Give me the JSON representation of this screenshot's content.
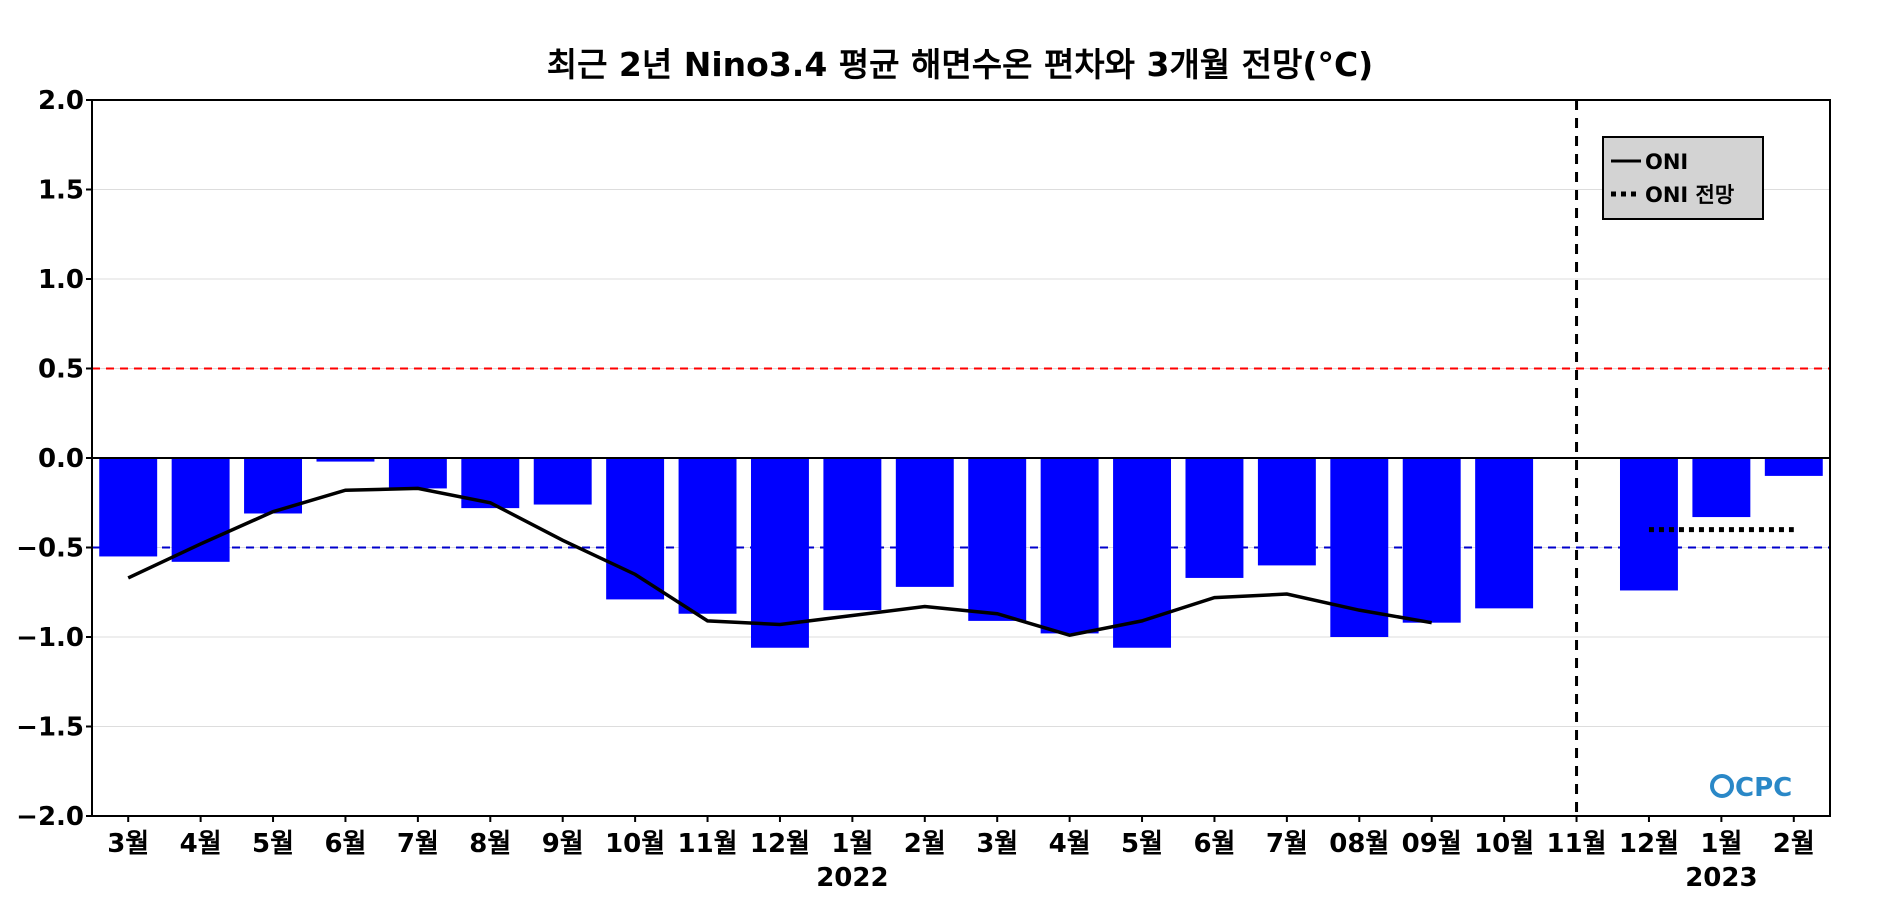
{
  "chart_data": {
    "type": "bar",
    "title": "최근 2년 Nino3.4 평균 해면수온 편차와 3개월 전망(°C)",
    "categories": [
      "3월",
      "4월",
      "5월",
      "6월",
      "7월",
      "8월",
      "9월",
      "10월",
      "11월",
      "12월",
      "1월",
      "2월",
      "3월",
      "4월",
      "5월",
      "6월",
      "7월",
      "08월",
      "09월",
      "10월",
      "11월",
      "12월",
      "1월",
      "2월"
    ],
    "years": [
      {
        "label": "2022",
        "under_category": 10
      },
      {
        "label": "2023",
        "under_category": 22
      }
    ],
    "ylim": [
      -2.0,
      2.0
    ],
    "yticks": [
      "2.0",
      "1.5",
      "1.0",
      "0.5",
      "0.0",
      "−0.5",
      "−1.0",
      "−1.5",
      "−2.0"
    ],
    "ytick_values": [
      2.0,
      1.5,
      1.0,
      0.5,
      0.0,
      -0.5,
      -1.0,
      -1.5,
      -2.0
    ],
    "grid": true,
    "bars": {
      "color": "#0000ff",
      "values": [
        -0.55,
        -0.58,
        -0.31,
        -0.02,
        -0.17,
        -0.28,
        -0.26,
        -0.79,
        -0.87,
        -1.06,
        -0.85,
        -0.72,
        -0.91,
        -0.98,
        -1.06,
        -0.67,
        -0.6,
        -1.0,
        -0.92,
        -0.84,
        null,
        -0.74,
        -0.33,
        -0.1
      ]
    },
    "series": [
      {
        "name": "ONI",
        "style": "solid",
        "color": "#000000",
        "values": [
          -0.67,
          -0.48,
          -0.3,
          -0.18,
          -0.17,
          -0.25,
          -0.46,
          -0.65,
          -0.91,
          -0.93,
          -0.88,
          -0.83,
          -0.87,
          -0.99,
          -0.91,
          -0.78,
          -0.76,
          -0.85,
          -0.92,
          null,
          null,
          null,
          null,
          null
        ]
      },
      {
        "name": "ONI 전망",
        "style": "dotted",
        "color": "#000000",
        "values": [
          null,
          null,
          null,
          null,
          null,
          null,
          null,
          null,
          null,
          null,
          null,
          null,
          null,
          null,
          null,
          null,
          null,
          null,
          null,
          null,
          null,
          -0.4,
          -0.4,
          -0.4
        ]
      }
    ],
    "reference_lines": [
      {
        "value": 0.5,
        "color": "#ff0000",
        "style": "dashed"
      },
      {
        "value": -0.5,
        "color": "#0000cc",
        "style": "dashed"
      },
      {
        "value": 0.0,
        "color": "#000000",
        "style": "solid"
      }
    ],
    "forecast_divider_category": 20,
    "legend_placement": "top-right",
    "legend_background": "#d3d3d3",
    "logo": {
      "text": "CPC",
      "color": "#2a88c7"
    }
  }
}
